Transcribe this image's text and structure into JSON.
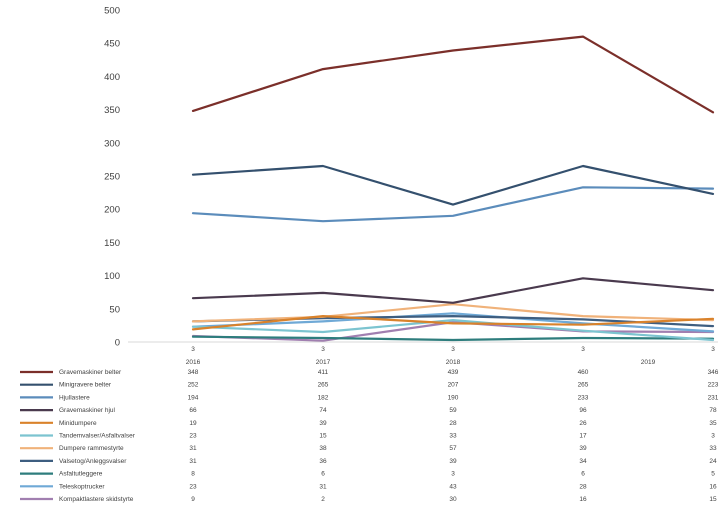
{
  "chart_data": {
    "type": "line",
    "ylim": [
      0,
      500
    ],
    "yticks": [
      "0",
      "50",
      "100",
      "150",
      "200",
      "250",
      "300",
      "350",
      "400",
      "450",
      "500"
    ],
    "x_top_labels": [
      "3",
      "3",
      "3",
      "3",
      "",
      "3"
    ],
    "x_labels": [
      "2016",
      "2017",
      "2018",
      "",
      "2019",
      ""
    ],
    "grid": false,
    "legend": "table-below",
    "series": [
      {
        "name": "Gravemaskiner belter",
        "color": "#7b2f2a",
        "values": [
          "348",
          "411",
          "439",
          "460",
          "346"
        ]
      },
      {
        "name": "Minigravere belter",
        "color": "#34506e",
        "values": [
          "252",
          "265",
          "207",
          "265",
          "223"
        ]
      },
      {
        "name": "Hjullastere",
        "color": "#5b8cbb",
        "values": [
          "194",
          "182",
          "190",
          "233",
          "231"
        ]
      },
      {
        "name": "Gravemaskiner hjul",
        "color": "#4a3a4e",
        "values": [
          "66",
          "74",
          "59",
          "96",
          "78"
        ]
      },
      {
        "name": "Minidumpere",
        "color": "#d9822b",
        "values": [
          "19",
          "39",
          "28",
          "26",
          "35"
        ]
      },
      {
        "name": "Tandemvalser/Asfaltvalser",
        "color": "#7cc4d0",
        "values": [
          "23",
          "15",
          "33",
          "17",
          "3"
        ]
      },
      {
        "name": "Dumpere rammestyrte",
        "color": "#f0b27a",
        "values": [
          "31",
          "38",
          "57",
          "39",
          "33"
        ]
      },
      {
        "name": "Valsetog/Anleggsvalser",
        "color": "#3e5e80",
        "values": [
          "31",
          "36",
          "39",
          "34",
          "24"
        ]
      },
      {
        "name": "Asfaltutleggere",
        "color": "#2e7d7d",
        "values": [
          "8",
          "6",
          "3",
          "6",
          "5"
        ]
      },
      {
        "name": "Teleskoptrucker",
        "color": "#6fa9d6",
        "values": [
          "23",
          "31",
          "43",
          "28",
          "16"
        ]
      },
      {
        "name": "Kompaktlastere skidstyrte",
        "color": "#a17fb0",
        "values": [
          "9",
          "2",
          "30",
          "16",
          "15"
        ]
      }
    ]
  }
}
